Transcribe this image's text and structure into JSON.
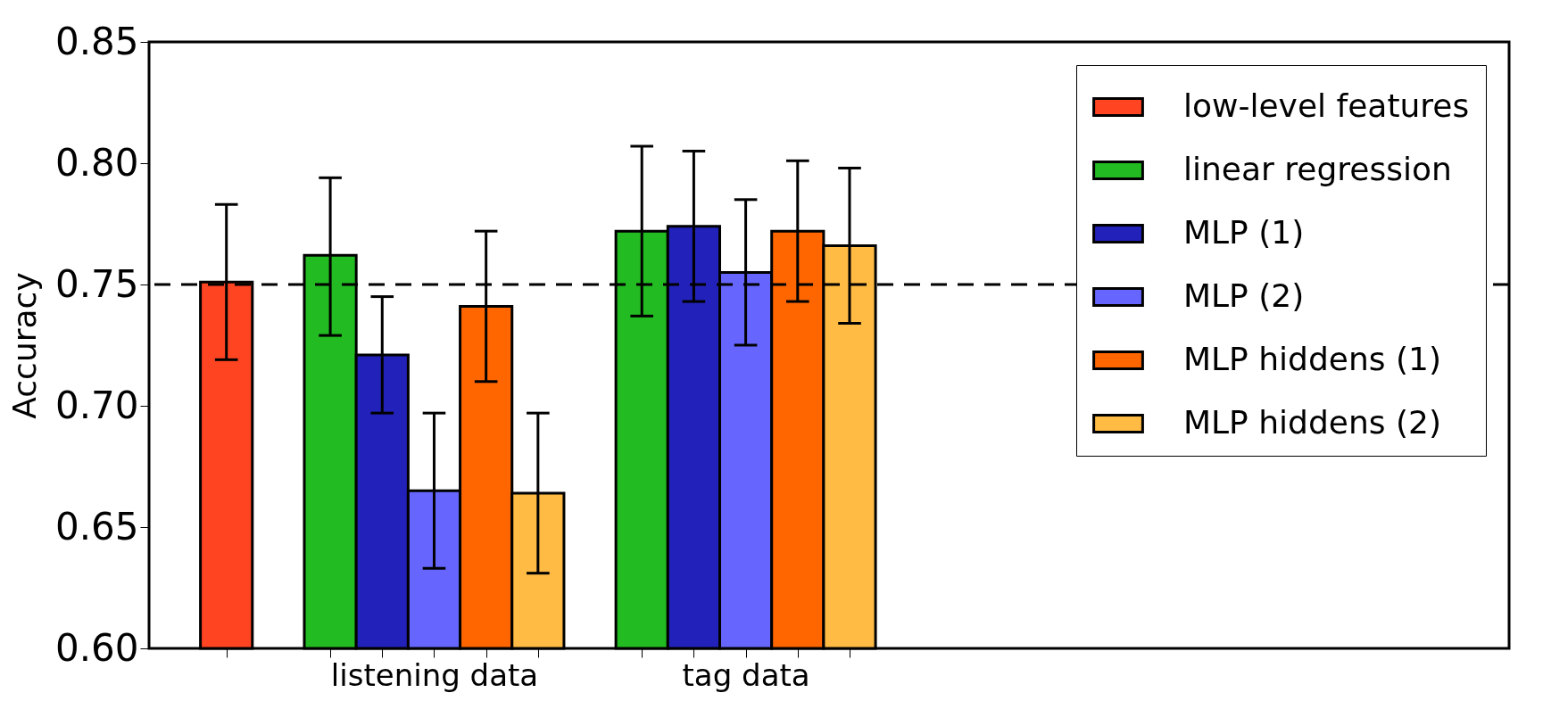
{
  "chart_data": {
    "type": "bar",
    "ylabel": "Accuracy",
    "categories": [
      null,
      "listening data",
      "tag data"
    ],
    "series": [
      {
        "name": "low-level features",
        "color": "#ff4422",
        "values": [
          0.751,
          null,
          null
        ],
        "errors": [
          [
            0.719,
            0.783
          ],
          null,
          null
        ]
      },
      {
        "name": "linear regression",
        "color": "#22bb22",
        "values": [
          null,
          0.762,
          0.772
        ],
        "errors": [
          null,
          [
            0.729,
            0.794
          ],
          [
            0.737,
            0.807
          ]
        ]
      },
      {
        "name": "MLP (1)",
        "color": "#2222bb",
        "values": [
          null,
          0.721,
          0.774
        ],
        "errors": [
          null,
          [
            0.697,
            0.745
          ],
          [
            0.743,
            0.805
          ]
        ]
      },
      {
        "name": "MLP (2)",
        "color": "#6666ff",
        "values": [
          null,
          0.665,
          0.755
        ],
        "errors": [
          null,
          [
            0.633,
            0.697
          ],
          [
            0.725,
            0.785
          ]
        ]
      },
      {
        "name": "MLP hiddens (1)",
        "color": "#ff6600",
        "values": [
          null,
          0.741,
          0.772
        ],
        "errors": [
          null,
          [
            0.71,
            0.772
          ],
          [
            0.743,
            0.801
          ]
        ]
      },
      {
        "name": "MLP hiddens (2)",
        "color": "#ffbb44",
        "values": [
          null,
          0.664,
          0.766
        ],
        "errors": [
          null,
          [
            0.631,
            0.697
          ],
          [
            0.734,
            0.798
          ]
        ]
      }
    ],
    "ylim": [
      0.6,
      0.85
    ],
    "yticks": [
      {
        "value": 0.6,
        "label": "0.60"
      },
      {
        "value": 0.65,
        "label": "0.65"
      },
      {
        "value": 0.7,
        "label": "0.70"
      },
      {
        "value": 0.75,
        "label": "0.75"
      },
      {
        "value": 0.8,
        "label": "0.80"
      },
      {
        "value": 0.85,
        "label": "0.85"
      }
    ],
    "ref_lines": [
      {
        "axis": "y",
        "value": 0.75,
        "color": "#000000",
        "line_style": "dashed"
      }
    ],
    "legend": "top right",
    "grid": false
  }
}
